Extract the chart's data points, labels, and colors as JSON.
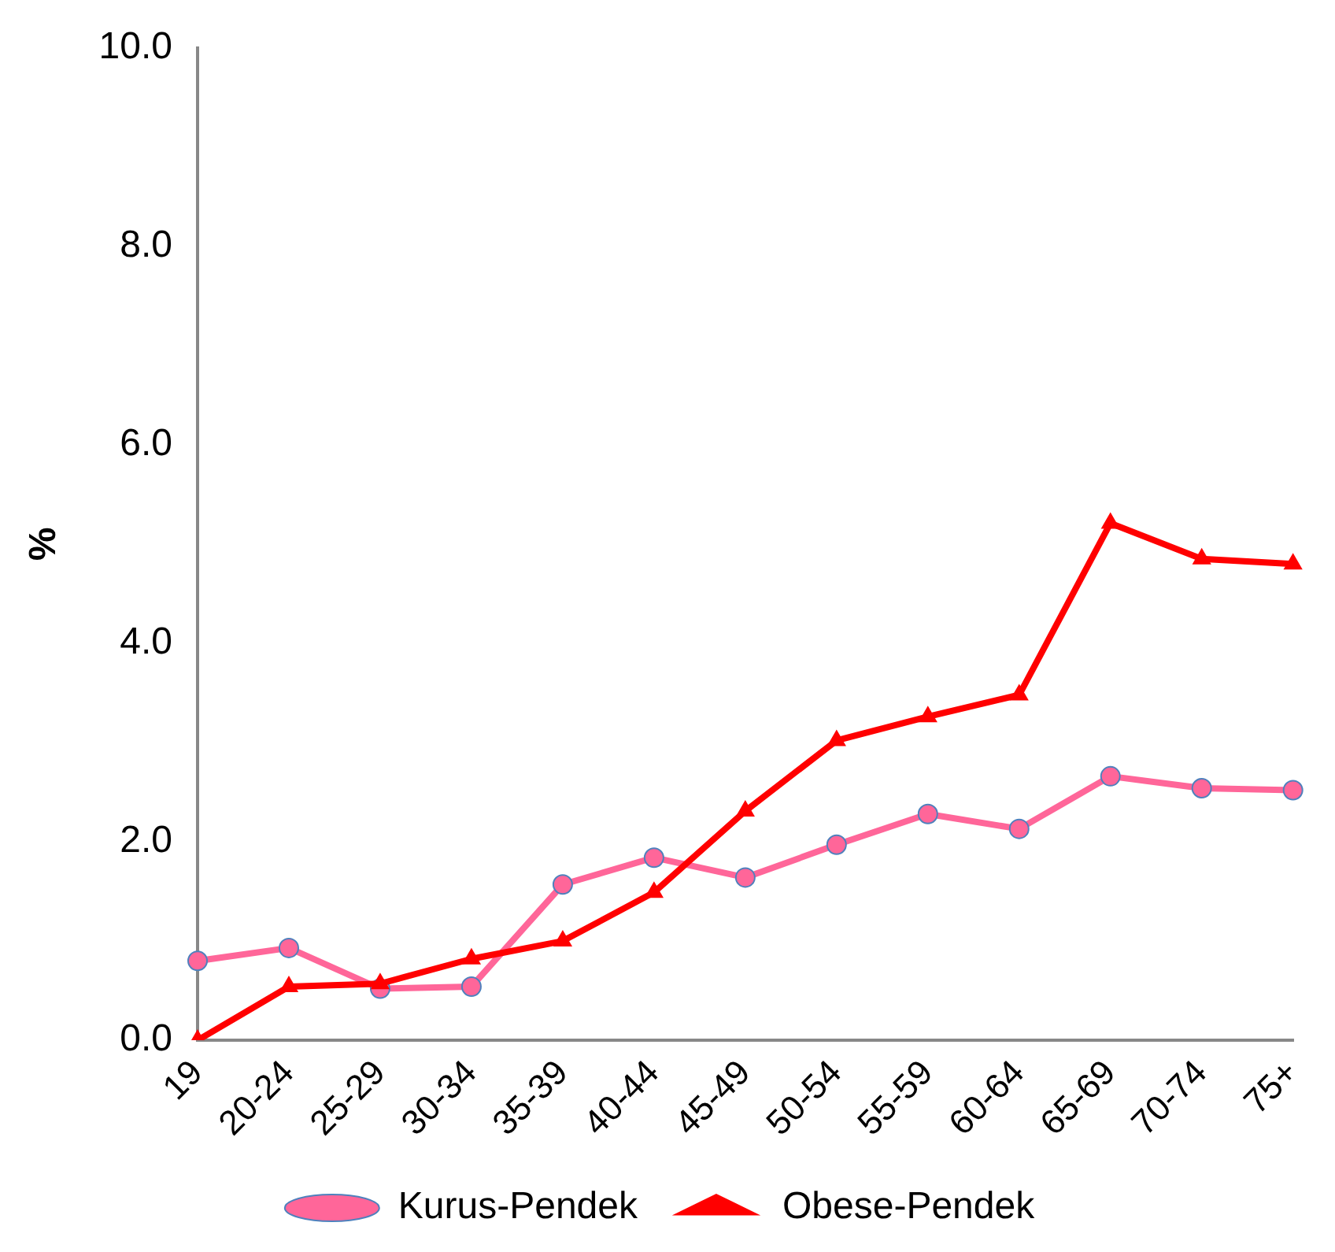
{
  "chart_data": {
    "type": "line",
    "ylabel": "%",
    "categories": [
      "19",
      "20-24",
      "25-29",
      "30-34",
      "35-39",
      "40-44",
      "45-49",
      "50-54",
      "55-59",
      "60-64",
      "65-69",
      "70-74",
      "75+"
    ],
    "series": [
      {
        "name": "Kurus-Pendek",
        "color": "#ff6699",
        "marker": "circle",
        "values": [
          0.8,
          0.93,
          0.52,
          0.54,
          1.57,
          1.84,
          1.64,
          1.97,
          2.28,
          2.13,
          2.66,
          2.54,
          2.52
        ]
      },
      {
        "name": "Obese-Pendek",
        "color": "#ff0000",
        "marker": "triangle",
        "values": [
          0.0,
          0.54,
          0.57,
          0.82,
          1.0,
          1.49,
          2.31,
          3.02,
          3.26,
          3.48,
          5.21,
          4.85,
          4.8
        ]
      }
    ],
    "ylim": [
      0,
      10
    ],
    "yticks": [
      {
        "value": 0,
        "label": "0.0"
      },
      {
        "value": 2,
        "label": "2.0"
      },
      {
        "value": 4,
        "label": "4.0"
      },
      {
        "value": 6,
        "label": "6.0"
      },
      {
        "value": 8,
        "label": "8.0"
      },
      {
        "value": 10,
        "label": "10.0"
      }
    ],
    "grid": false,
    "legend": "bottom",
    "line_style": "solid"
  }
}
